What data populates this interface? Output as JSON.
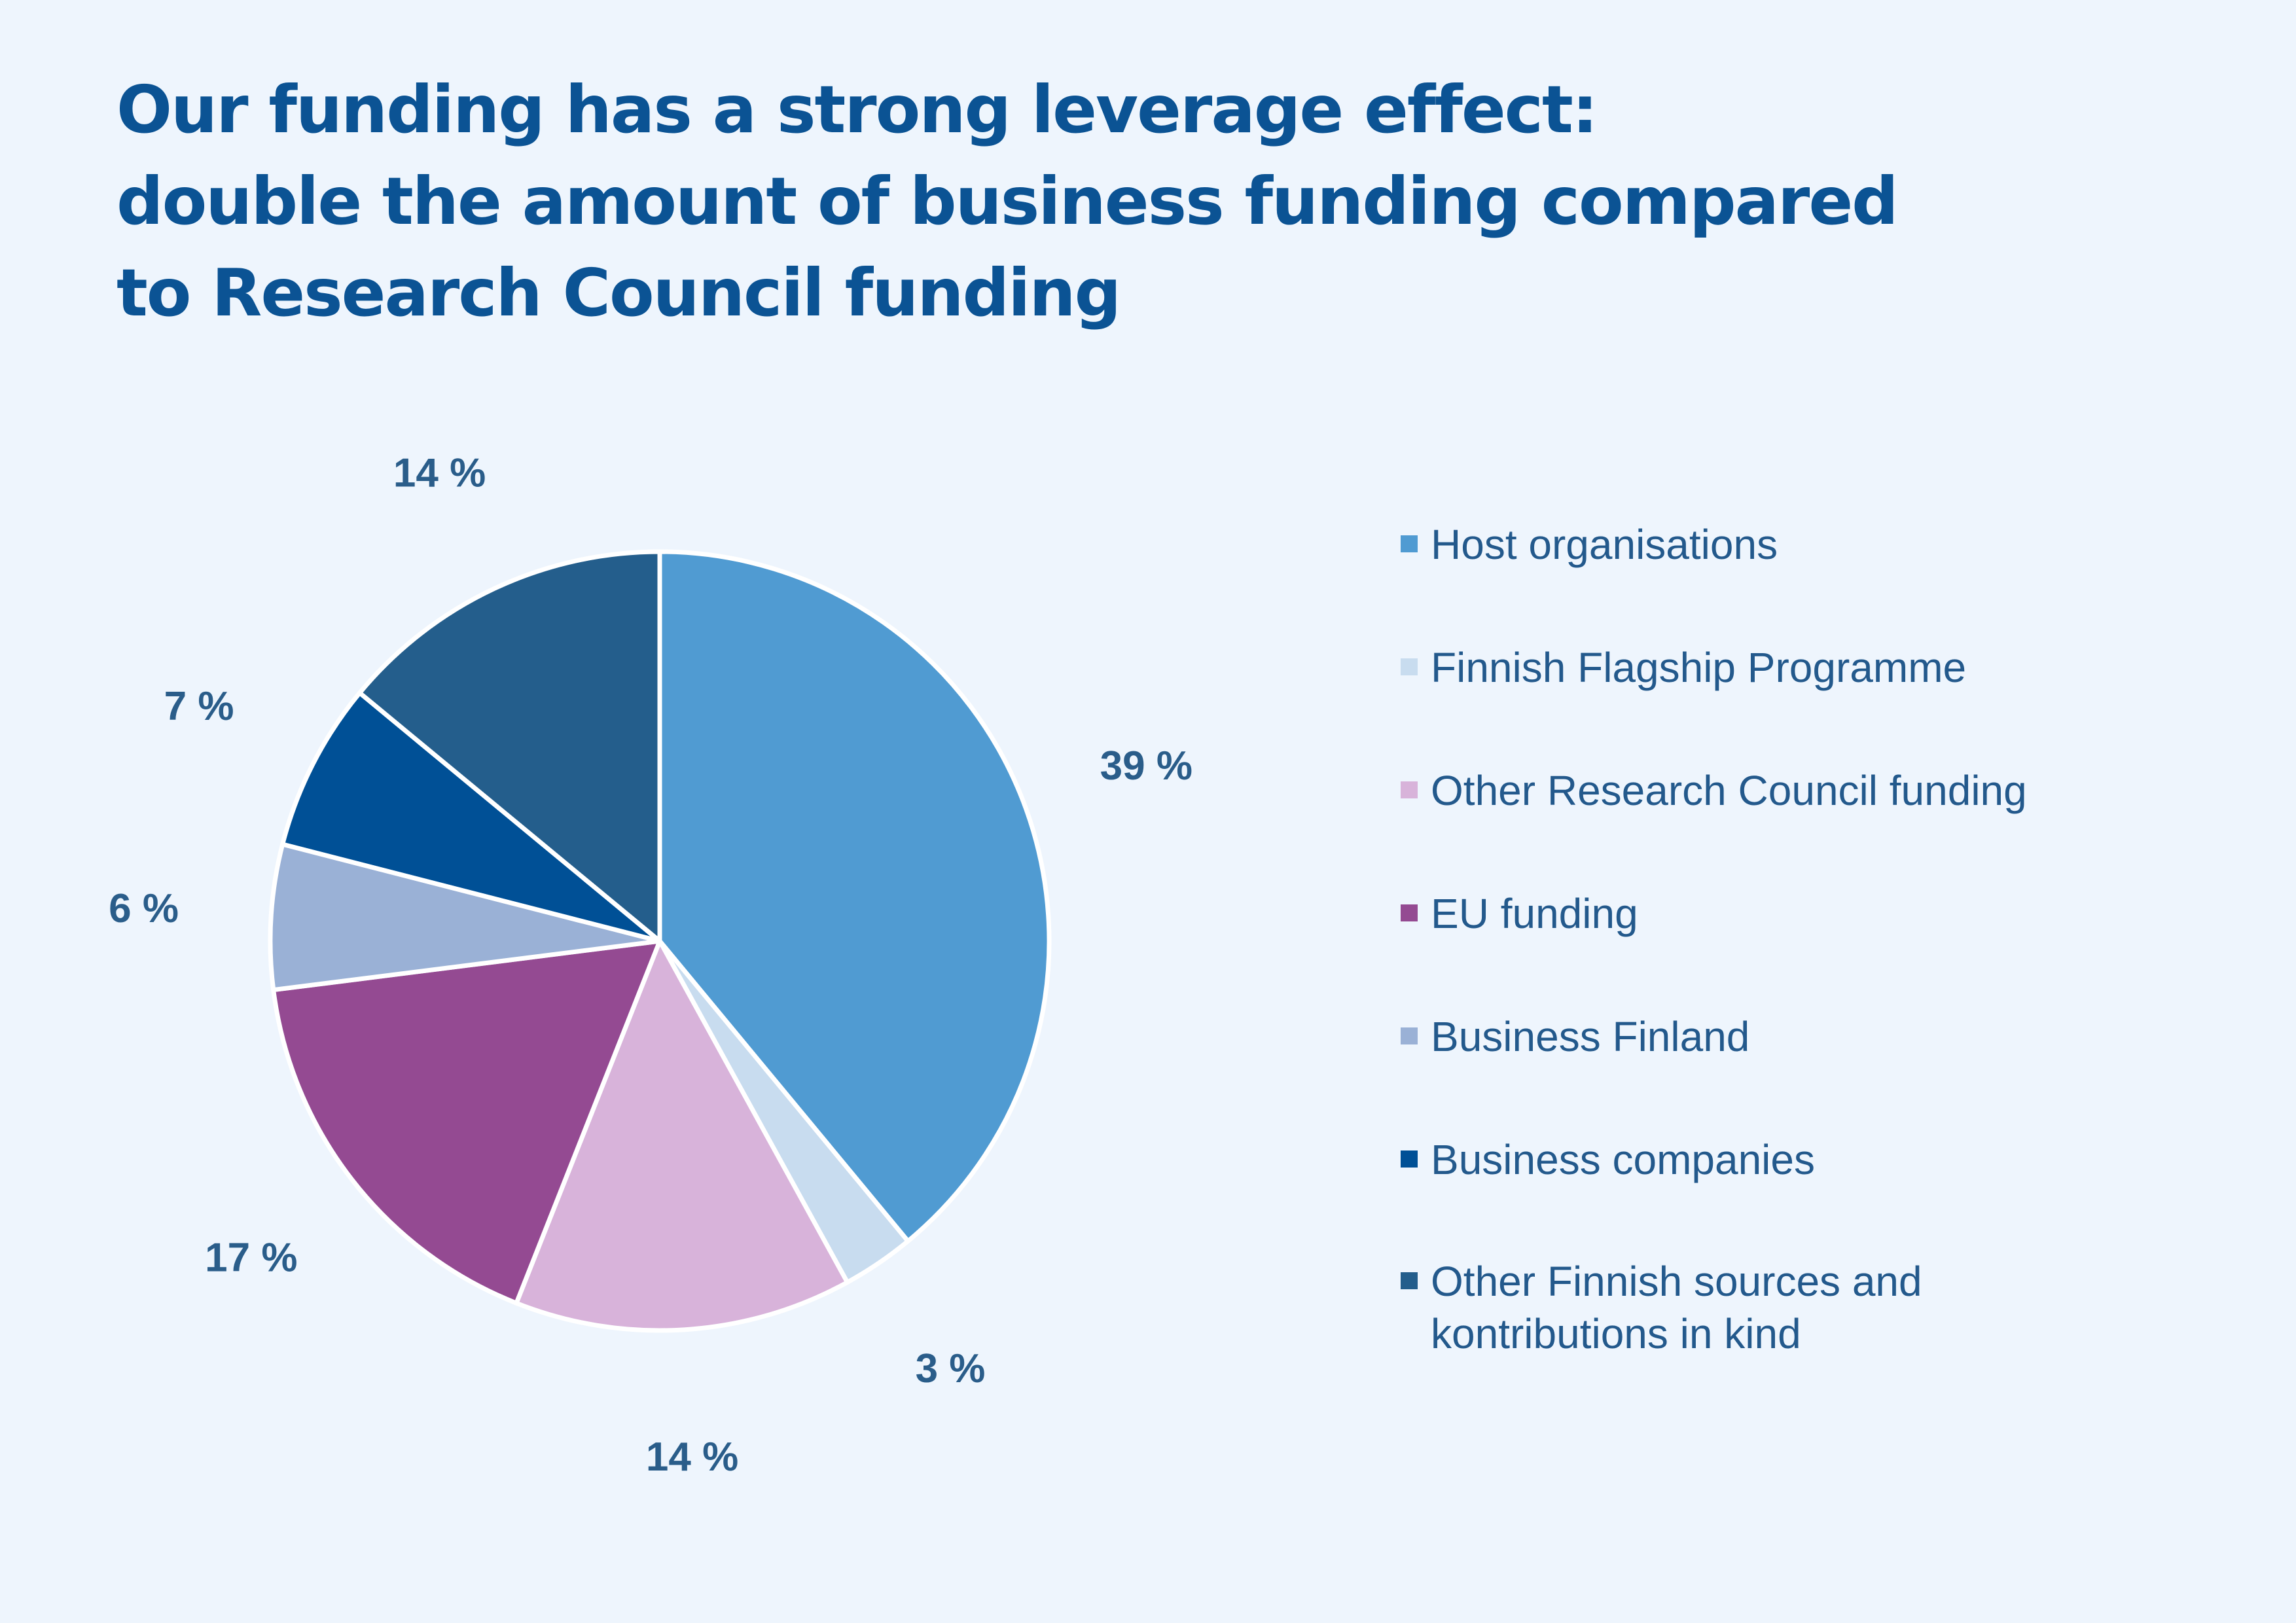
{
  "title_lines": [
    "Our funding has a strong leverage effect:",
    "double the amount of business funding compared",
    "to Research Council funding"
  ],
  "chart_data": {
    "type": "pie",
    "title": "Our funding has a strong leverage effect: double the amount of business funding compared to Research Council funding",
    "start_angle_deg": 0,
    "direction": "clockwise",
    "legend_position": "right",
    "unit": "%",
    "slices": [
      {
        "label": "Host organisations",
        "value": 39,
        "display": "39 %",
        "color": "#509bd2"
      },
      {
        "label": "Finnish Flagship Programme",
        "value": 3,
        "display": "3 %",
        "color": "#c8dcef"
      },
      {
        "label": "Other Research Council funding",
        "value": 14,
        "display": "14 %",
        "color": "#d8b3da"
      },
      {
        "label": "EU funding",
        "value": 17,
        "display": "17 %",
        "color": "#944a92"
      },
      {
        "label": "Business Finland",
        "value": 6,
        "display": "6 %",
        "color": "#9ab1d6"
      },
      {
        "label": "Business companies",
        "value": 7,
        "display": "7 %",
        "color": "#005096"
      },
      {
        "label": "Other Finnish sources and\nkontributions in kind",
        "value": 14,
        "display": "14 %",
        "color": "#245e8c"
      }
    ]
  }
}
